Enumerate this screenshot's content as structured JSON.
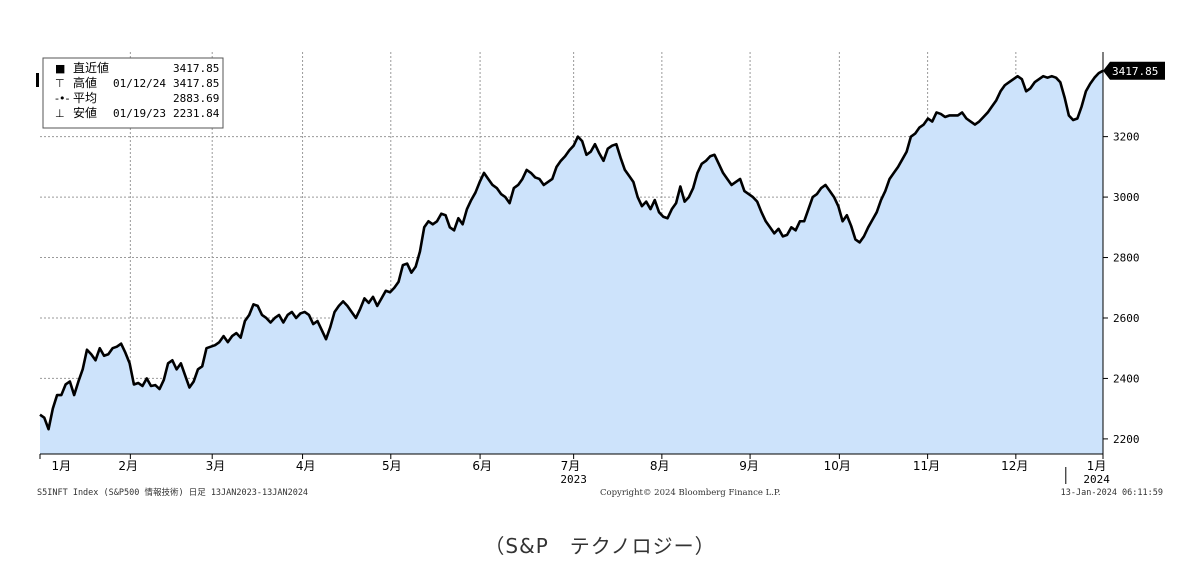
{
  "chart_data": {
    "type": "area",
    "title": "",
    "ylim": [
      2150,
      3480
    ],
    "y_ticks": [
      2200,
      2400,
      2600,
      2800,
      3000,
      3200
    ],
    "grid": true,
    "colors": {
      "line": "#000000",
      "fill": "#cde3fb"
    },
    "last_value_label": "3417.85",
    "legend": {
      "position": "top-left",
      "rows": [
        {
          "label": "直近値",
          "date": "",
          "value": "3417.85"
        },
        {
          "label": "高値",
          "date": "01/12/24",
          "value": "3417.85"
        },
        {
          "label": "平均",
          "date": "",
          "value": "2883.69"
        },
        {
          "label": "安値",
          "date": "01/19/23",
          "value": "2231.84"
        }
      ]
    },
    "x_month_labels": [
      "1月",
      "2月",
      "3月",
      "4月",
      "5月",
      "6月",
      "7月",
      "8月",
      "9月",
      "10月",
      "11月",
      "12月",
      "1月"
    ],
    "x_year_labels": [
      "2023",
      "2024"
    ],
    "footer_left": "S5INFT Index (S&P500 情報技術)  日足 13JAN2023-13JAN2024",
    "footer_center": "Copyright© 2024 Bloomberg Finance L.P.",
    "footer_right": "13-Jan-2024 06:11:59",
    "series": [
      {
        "values": [
          2280,
          2270,
          2232,
          2300,
          2345,
          2345,
          2380,
          2390,
          2345,
          2390,
          2430,
          2495,
          2480,
          2460,
          2500,
          2475,
          2480,
          2500,
          2505,
          2515,
          2485,
          2450,
          2380,
          2385,
          2375,
          2400,
          2375,
          2378,
          2365,
          2395,
          2450,
          2460,
          2430,
          2450,
          2410,
          2370,
          2390,
          2430,
          2440,
          2500,
          2505,
          2510,
          2520,
          2540,
          2520,
          2540,
          2550,
          2535,
          2590,
          2610,
          2645,
          2640,
          2610,
          2600,
          2585,
          2600,
          2610,
          2585,
          2610,
          2620,
          2600,
          2615,
          2620,
          2610,
          2580,
          2590,
          2560,
          2530,
          2570,
          2620,
          2640,
          2655,
          2640,
          2620,
          2600,
          2630,
          2665,
          2650,
          2670,
          2640,
          2665,
          2690,
          2685,
          2700,
          2720,
          2775,
          2780,
          2750,
          2770,
          2820,
          2900,
          2920,
          2910,
          2920,
          2945,
          2940,
          2900,
          2890,
          2930,
          2910,
          2960,
          2990,
          3015,
          3050,
          3080,
          3060,
          3040,
          3030,
          3010,
          3000,
          2980,
          3030,
          3040,
          3060,
          3090,
          3080,
          3065,
          3060,
          3040,
          3050,
          3060,
          3100,
          3120,
          3135,
          3155,
          3170,
          3200,
          3185,
          3140,
          3150,
          3175,
          3145,
          3120,
          3160,
          3170,
          3175,
          3130,
          3090,
          3070,
          3050,
          3000,
          2970,
          2985,
          2960,
          2990,
          2950,
          2935,
          2930,
          2960,
          2980,
          3035,
          2985,
          3000,
          3030,
          3080,
          3110,
          3120,
          3135,
          3140,
          3110,
          3080,
          3060,
          3040,
          3050,
          3060,
          3020,
          3010,
          3000,
          2985,
          2950,
          2920,
          2900,
          2880,
          2895,
          2870,
          2875,
          2900,
          2890,
          2920,
          2920,
          2960,
          3000,
          3010,
          3030,
          3040,
          3020,
          3000,
          2970,
          2920,
          2940,
          2905,
          2860,
          2850,
          2870,
          2900,
          2925,
          2950,
          2990,
          3020,
          3060,
          3080,
          3100,
          3125,
          3150,
          3200,
          3210,
          3230,
          3240,
          3260,
          3250,
          3280,
          3275,
          3265,
          3270,
          3270,
          3270,
          3280,
          3260,
          3250,
          3240,
          3250,
          3265,
          3280,
          3300,
          3320,
          3350,
          3370,
          3380,
          3390,
          3400,
          3390,
          3350,
          3360,
          3380,
          3390,
          3400,
          3395,
          3400,
          3395,
          3380,
          3330,
          3270,
          3255,
          3260,
          3300,
          3350,
          3375,
          3395,
          3410,
          3417.85
        ]
      }
    ]
  }
}
